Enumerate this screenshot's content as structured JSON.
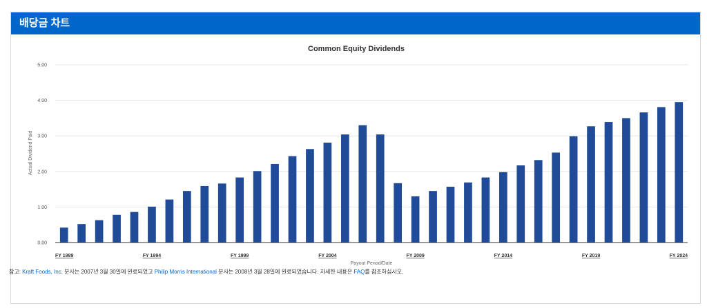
{
  "header": {
    "title": "배당금 차트"
  },
  "footnote": {
    "prefix": "참고: ",
    "link1": "Kraft Foods, Inc.",
    "mid1": " 분사는 2007년 3월 30일에 완료되었고 ",
    "link2": "Philip Morris International",
    "mid2": " 분사는 2008년 3월 28일에 완료되었습니다. 자세한 내용은 ",
    "link3": "FAQ",
    "suffix": "를 참조하십시오."
  },
  "colors": {
    "bar": "#1f4b99",
    "header": "#0066cc",
    "grid": "#e6e6e6"
  },
  "chart_data": {
    "type": "bar",
    "title": "Common Equity Dividends",
    "xlabel": "Payout Period/Date",
    "ylabel": "Actual Dividend Paid",
    "ylim": [
      0,
      5
    ],
    "yticks": [
      "0.00",
      "1.00",
      "2.00",
      "3.00",
      "4.00",
      "5.00"
    ],
    "grid": true,
    "categories": [
      "FY 1989",
      "FY 1990",
      "FY 1991",
      "FY 1992",
      "FY 1993",
      "FY 1994",
      "FY 1995",
      "FY 1996",
      "FY 1997",
      "FY 1998",
      "FY 1999",
      "FY 2000",
      "FY 2001",
      "FY 2002",
      "FY 2003",
      "FY 2004",
      "FY 2005",
      "FY 2006",
      "FY 2007",
      "FY 2008",
      "FY 2009",
      "FY 2010",
      "FY 2011",
      "FY 2012",
      "FY 2013",
      "FY 2014",
      "FY 2015",
      "FY 2016",
      "FY 2017",
      "FY 2018",
      "FY 2019",
      "FY 2020",
      "FY 2021",
      "FY 2022",
      "FY 2023",
      "FY 2024"
    ],
    "tick_labels": [
      "FY 1989",
      "FY 1994",
      "FY 1999",
      "FY 2004",
      "FY 2009",
      "FY 2014",
      "FY 2019",
      "FY 2024"
    ],
    "values": [
      0.42,
      0.52,
      0.63,
      0.78,
      0.86,
      1.01,
      1.21,
      1.45,
      1.59,
      1.66,
      1.83,
      2.01,
      2.21,
      2.43,
      2.63,
      2.81,
      3.04,
      3.3,
      3.04,
      1.67,
      1.3,
      1.45,
      1.57,
      1.69,
      1.83,
      1.98,
      2.17,
      2.32,
      2.53,
      2.99,
      3.27,
      3.39,
      3.5,
      3.66,
      3.81,
      3.95
    ]
  }
}
